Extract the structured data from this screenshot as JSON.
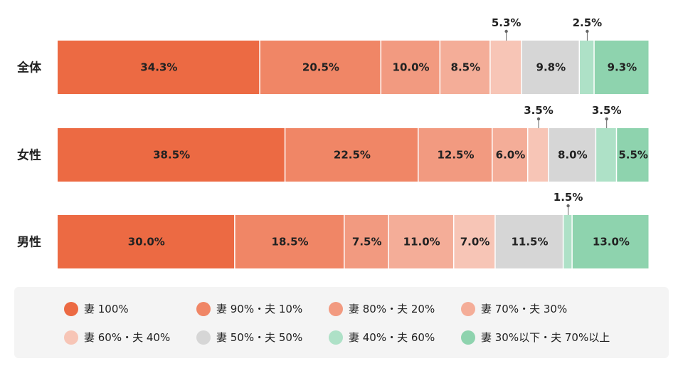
{
  "chart_data": {
    "type": "bar",
    "orientation": "horizontal",
    "stacked": true,
    "categories": [
      "全体",
      "女性",
      "男性"
    ],
    "series": [
      {
        "name": "妻 100%",
        "color": "#EC6A43",
        "values": [
          34.3,
          38.5,
          30.0
        ]
      },
      {
        "name": "妻 90%・夫 10%",
        "color": "#F08666",
        "values": [
          20.5,
          22.5,
          18.5
        ]
      },
      {
        "name": "妻 80%・夫 20%",
        "color": "#F29A80",
        "values": [
          10.0,
          12.5,
          7.5
        ]
      },
      {
        "name": "妻 70%・夫 30%",
        "color": "#F4AD98",
        "values": [
          8.5,
          6.0,
          11.0
        ]
      },
      {
        "name": "妻 60%・夫 40%",
        "color": "#F7C5B6",
        "values": [
          5.3,
          3.5,
          7.0
        ]
      },
      {
        "name": "妻 50%・夫 50%",
        "color": "#D6D6D6",
        "values": [
          9.8,
          8.0,
          11.5
        ]
      },
      {
        "name": "妻 40%・夫 60%",
        "color": "#AEE1C7",
        "values": [
          2.5,
          3.5,
          1.5
        ]
      },
      {
        "name": "妻 30%以下・夫 70%以上",
        "color": "#8ED3AE",
        "values": [
          9.3,
          5.5,
          13.0
        ]
      }
    ],
    "labels": [
      [
        "34.3%",
        "20.5%",
        "10.0%",
        "8.5%",
        "5.3%",
        "9.8%",
        "2.5%",
        "9.3%"
      ],
      [
        "38.5%",
        "22.5%",
        "12.5%",
        "6.0%",
        "3.5%",
        "8.0%",
        "3.5%",
        "5.5%"
      ],
      [
        "30.0%",
        "18.5%",
        "7.5%",
        "11.0%",
        "7.0%",
        "11.5%",
        "1.5%",
        "13.0%"
      ]
    ],
    "xlim": [
      0,
      100
    ],
    "legend_position": "bottom"
  }
}
